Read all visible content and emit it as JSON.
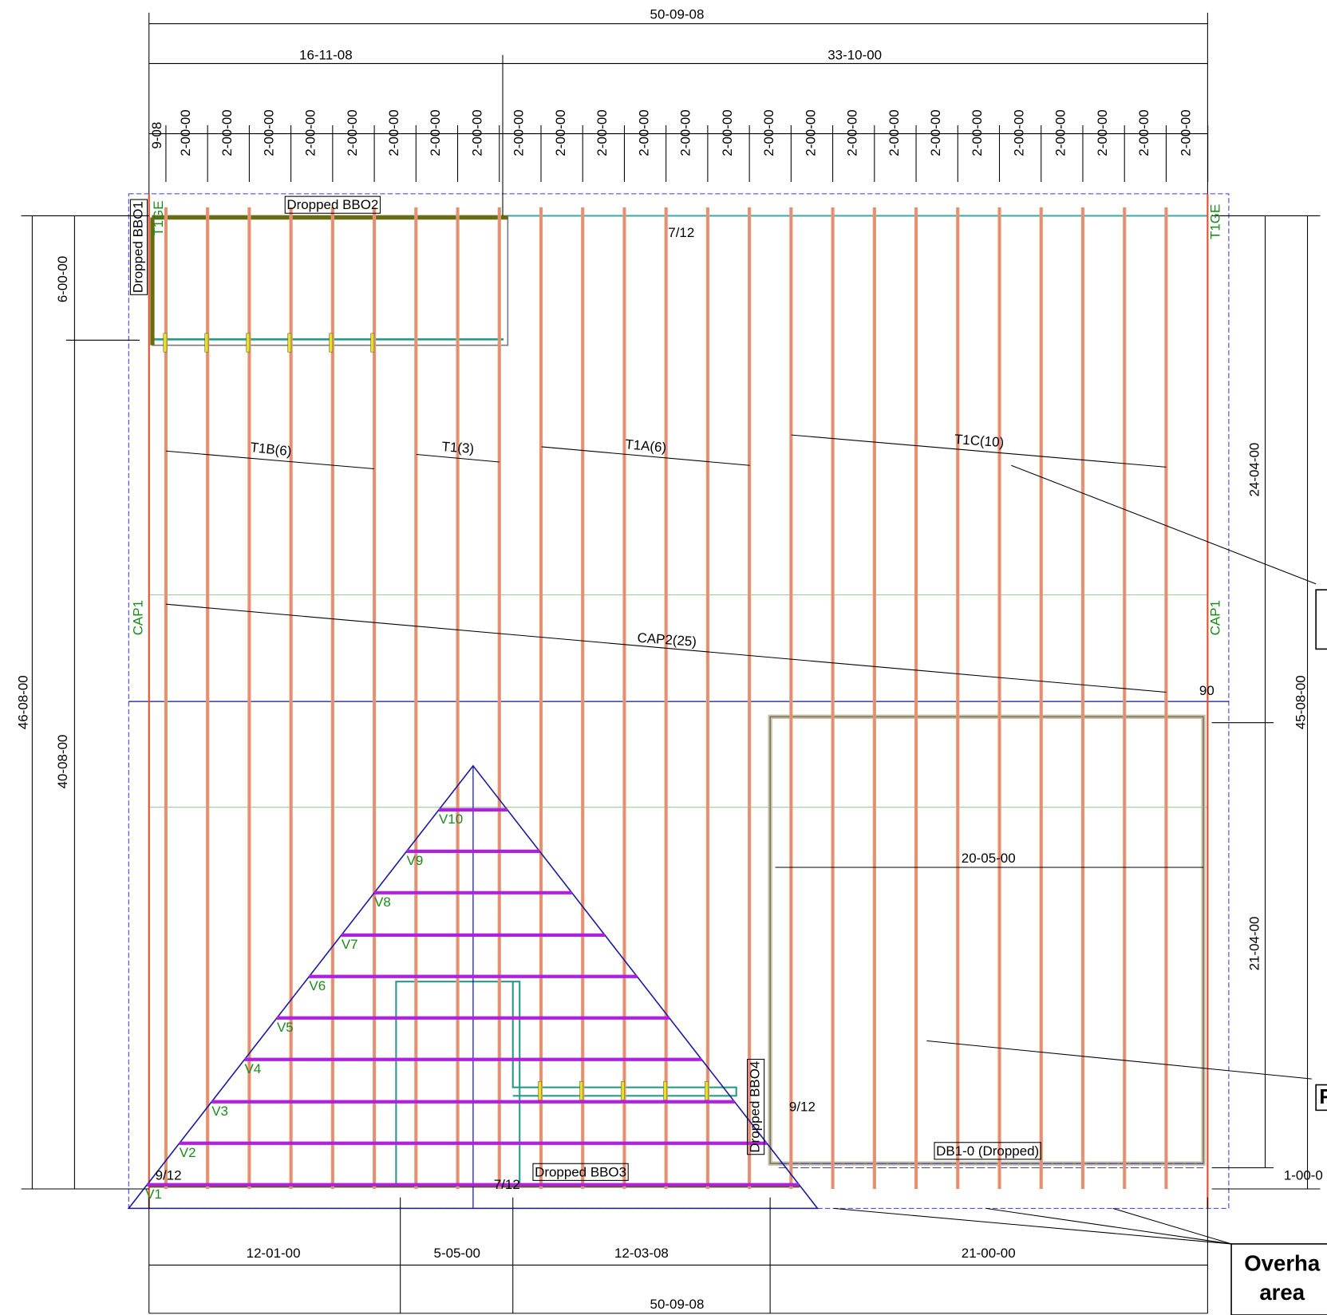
{
  "dimensions": {
    "top_overall": "50-09-08",
    "top_segments": [
      "16-11-08",
      "33-10-00"
    ],
    "spacing": [
      "9-08",
      "2-00-00",
      "2-00-00",
      "2-00-00",
      "2-00-00",
      "2-00-00",
      "2-00-00",
      "2-00-00",
      "2-00-00",
      "2-00-00",
      "2-00-00",
      "2-00-00",
      "2-00-00",
      "2-00-00",
      "2-00-00",
      "2-00-00",
      "2-00-00",
      "2-00-00",
      "2-00-00",
      "2-00-00",
      "2-00-00",
      "2-00-00",
      "2-00-00",
      "2-00-00",
      "2-00-00",
      "2-00-00"
    ],
    "left": [
      "46-08-00",
      "6-00-00",
      "40-08-00"
    ],
    "right": [
      "24-04-00",
      "45-08-00",
      "21-04-00",
      "1-00-0"
    ],
    "bottom_segments": [
      "12-01-00",
      "5-05-00",
      "12-03-08",
      "21-00-00"
    ],
    "bottom_overall": "50-09-08",
    "interior": "20-05-00"
  },
  "labels": {
    "bbo1": "Dropped BBO1",
    "bbo2": "Dropped BBO2",
    "bbo3": "Dropped BBO3",
    "bbo4": "Dropped BBO4",
    "gable_left": "T1GE",
    "gable_right": "T1GE",
    "cap_left": "CAP1",
    "cap_right": "CAP1",
    "pitch_top": "7/12",
    "pitch_left": "9/12",
    "pitch_right": "9/12",
    "pitch_bottom": "7/12",
    "angle": "90",
    "truss_groups": [
      "T1B(6)",
      "T1(3)",
      "T1A(6)",
      "T1C(10)",
      "CAP2(25)"
    ],
    "drop_beam": "DB1-0 (Dropped)",
    "valleys": [
      "V1",
      "V2",
      "V3",
      "V4",
      "V5",
      "V6",
      "V7",
      "V8",
      "V9",
      "V10"
    ],
    "callout_right": "F",
    "overhang": [
      "Overha",
      "area"
    ]
  }
}
